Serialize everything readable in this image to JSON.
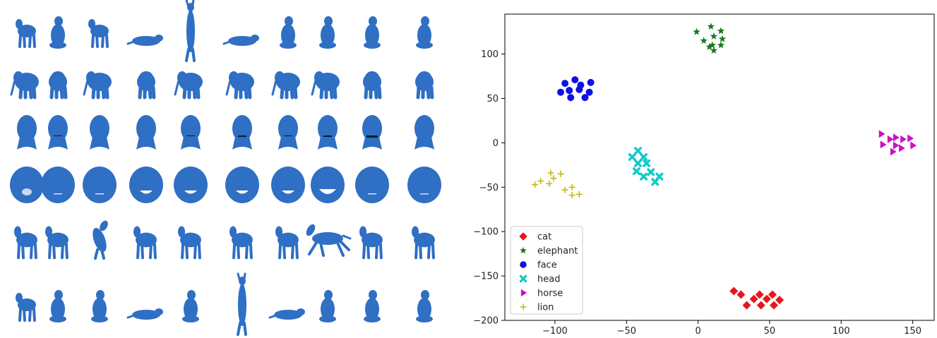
{
  "gallery": {
    "color": "#2f6fc4",
    "rows": [
      {
        "class": "cat",
        "poses": [
          "stand",
          "sit",
          "walk",
          "lie",
          "stretch-up",
          "lie",
          "sit",
          "sit",
          "sit",
          "sit"
        ]
      },
      {
        "class": "elephant",
        "poses": [
          "walk",
          "front",
          "walk",
          "front",
          "walk",
          "walk",
          "walk",
          "walk",
          "front",
          "front"
        ]
      },
      {
        "class": "head",
        "expressions": [
          "neutral",
          "smile",
          "neutral",
          "neutral",
          "smile",
          "open",
          "smile",
          "open",
          "wide-open",
          "neutral"
        ]
      },
      {
        "class": "face",
        "expressions": [
          "open",
          "neutral",
          "neutral",
          "smile",
          "smile",
          "smile",
          "smile",
          "wide-smile",
          "neutral",
          "neutral"
        ]
      },
      {
        "class": "horse",
        "poses": [
          "stand",
          "stand",
          "rear",
          "walk",
          "walk",
          "stand",
          "stand",
          "gallop",
          "stand",
          "stand"
        ]
      },
      {
        "class": "lion",
        "poses": [
          "stand",
          "sit",
          "sit",
          "lie",
          "crouch",
          "stretch-up",
          "lie",
          "sit",
          "sit",
          "sit"
        ]
      }
    ]
  },
  "chart_data": {
    "type": "scatter",
    "xlim": [
      -135,
      165
    ],
    "ylim": [
      -200,
      145
    ],
    "xticks": [
      -100,
      -50,
      0,
      50,
      100,
      150
    ],
    "yticks": [
      -200,
      -150,
      -100,
      -50,
      0,
      50,
      100
    ],
    "grid": false,
    "legend_position": "lower-left",
    "series": [
      {
        "name": "cat",
        "marker": "diamond",
        "color": "#e8161a",
        "points": [
          [
            25,
            -167
          ],
          [
            30,
            -171
          ],
          [
            34,
            -183
          ],
          [
            39,
            -176
          ],
          [
            43,
            -171
          ],
          [
            44,
            -183
          ],
          [
            48,
            -176
          ],
          [
            52,
            -171
          ],
          [
            53,
            -183
          ],
          [
            57,
            -177
          ]
        ]
      },
      {
        "name": "elephant",
        "marker": "star",
        "color": "#157a1c",
        "points": [
          [
            -1,
            125
          ],
          [
            4,
            115
          ],
          [
            9,
            131
          ],
          [
            11,
            120
          ],
          [
            10,
            110
          ],
          [
            11,
            104
          ],
          [
            16,
            126
          ],
          [
            17,
            117
          ],
          [
            16,
            110
          ],
          [
            8,
            108
          ]
        ]
      },
      {
        "name": "face",
        "marker": "circle",
        "color": "#0d10e8",
        "points": [
          [
            -96,
            57
          ],
          [
            -93,
            67
          ],
          [
            -90,
            59
          ],
          [
            -89,
            51
          ],
          [
            -86,
            71
          ],
          [
            -83,
            60
          ],
          [
            -82,
            65
          ],
          [
            -79,
            51
          ],
          [
            -76,
            57
          ],
          [
            -75,
            68
          ]
        ]
      },
      {
        "name": "head",
        "marker": "x",
        "color": "#12c8c8",
        "points": [
          [
            -46,
            -16
          ],
          [
            -42,
            -9
          ],
          [
            -42,
            -23
          ],
          [
            -38,
            -16
          ],
          [
            -43,
            -32
          ],
          [
            -38,
            -38
          ],
          [
            -36,
            -23
          ],
          [
            -33,
            -33
          ],
          [
            -30,
            -44
          ],
          [
            -27,
            -38
          ]
        ]
      },
      {
        "name": "horse",
        "marker": "triangle-right",
        "color": "#c712c7",
        "points": [
          [
            128,
            10
          ],
          [
            129,
            -2
          ],
          [
            134,
            4
          ],
          [
            136,
            -10
          ],
          [
            138,
            6
          ],
          [
            138,
            -3
          ],
          [
            142,
            -6
          ],
          [
            143,
            4
          ],
          [
            148,
            5
          ],
          [
            150,
            -3
          ]
        ]
      },
      {
        "name": "lion",
        "marker": "plus",
        "color": "#c2b80d",
        "points": [
          [
            -114,
            -47
          ],
          [
            -110,
            -43
          ],
          [
            -104,
            -46
          ],
          [
            -103,
            -34
          ],
          [
            -101,
            -40
          ],
          [
            -96,
            -35
          ],
          [
            -93,
            -53
          ],
          [
            -88,
            -50
          ],
          [
            -88,
            -59
          ],
          [
            -83,
            -58
          ]
        ]
      }
    ]
  }
}
